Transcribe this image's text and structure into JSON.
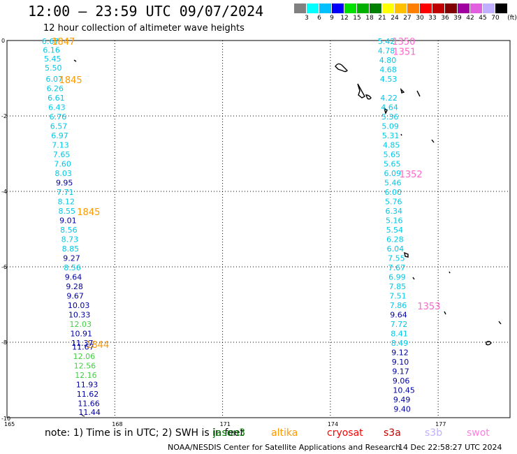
{
  "header": {
    "title": "12:00 – 23:59 UTC 09/07/2024",
    "subtitle": "12 hour collection of altimeter wave heights"
  },
  "legend": {
    "unit": "(ft)",
    "bins": [
      {
        "color": "#808080",
        "label": "3"
      },
      {
        "color": "#00ffff",
        "label": "6"
      },
      {
        "color": "#00c0ff",
        "label": "9"
      },
      {
        "color": "#0000ff",
        "label": "12"
      },
      {
        "color": "#00e000",
        "label": "15"
      },
      {
        "color": "#00b000",
        "label": "18"
      },
      {
        "color": "#008000",
        "label": "21"
      },
      {
        "color": "#ffff00",
        "label": "24"
      },
      {
        "color": "#ffc000",
        "label": "27"
      },
      {
        "color": "#ff8000",
        "label": "30"
      },
      {
        "color": "#ff0000",
        "label": "33"
      },
      {
        "color": "#c00000",
        "label": "36"
      },
      {
        "color": "#800000",
        "label": "39"
      },
      {
        "color": "#a000a0",
        "label": "42"
      },
      {
        "color": "#e060e0",
        "label": "45"
      },
      {
        "color": "#c0b0ff",
        "label": "70"
      },
      {
        "color": "#000000",
        "label": ""
      }
    ]
  },
  "axes": {
    "lat_ticks": [
      "0",
      "-2",
      "-4",
      "-6",
      "-8",
      "-10"
    ],
    "lon_ticks": [
      "165",
      "168",
      "171",
      "174",
      "177"
    ],
    "lat_range": [
      -10,
      0
    ],
    "lon_range": [
      165,
      179
    ]
  },
  "colors": {
    "cyan": "#00c8e8",
    "navy": "#0000a0",
    "green": "#40d040",
    "orange": "#ff9900",
    "pink": "#ff66cc"
  },
  "track1": {
    "tracks": [
      {
        "lon": 165.97,
        "lat": -0.02,
        "v": "6.67",
        "c": "cyan"
      },
      {
        "lon": 166.0,
        "lat": -0.25,
        "v": "6.16",
        "c": "cyan"
      },
      {
        "lon": 166.03,
        "lat": -0.48,
        "v": "5.45",
        "c": "cyan"
      },
      {
        "lon": 166.05,
        "lat": -0.72,
        "v": "5.50",
        "c": "cyan"
      },
      {
        "lon": 166.08,
        "lat": -1.02,
        "v": "6.07",
        "c": "cyan"
      },
      {
        "lon": 166.1,
        "lat": -1.27,
        "v": "6.26",
        "c": "cyan"
      },
      {
        "lon": 166.13,
        "lat": -1.52,
        "v": "6.61",
        "c": "cyan"
      },
      {
        "lon": 166.15,
        "lat": -1.77,
        "v": "6.43",
        "c": "cyan"
      },
      {
        "lon": 166.18,
        "lat": -2.02,
        "v": "6.76",
        "c": "cyan"
      },
      {
        "lon": 166.2,
        "lat": -2.27,
        "v": "6.57",
        "c": "cyan"
      },
      {
        "lon": 166.23,
        "lat": -2.52,
        "v": "6.97",
        "c": "cyan"
      },
      {
        "lon": 166.25,
        "lat": -2.77,
        "v": "7.13",
        "c": "cyan"
      },
      {
        "lon": 166.28,
        "lat": -3.02,
        "v": "7.65",
        "c": "cyan"
      },
      {
        "lon": 166.31,
        "lat": -3.27,
        "v": "7.60",
        "c": "cyan"
      },
      {
        "lon": 166.33,
        "lat": -3.52,
        "v": "8.03",
        "c": "cyan"
      },
      {
        "lon": 166.36,
        "lat": -3.77,
        "v": "9.95",
        "c": "navy"
      },
      {
        "lon": 166.38,
        "lat": -4.02,
        "v": "7.71",
        "c": "cyan"
      },
      {
        "lon": 166.41,
        "lat": -4.27,
        "v": "8.12",
        "c": "cyan"
      },
      {
        "lon": 166.43,
        "lat": -4.52,
        "v": "8.55",
        "c": "cyan"
      },
      {
        "lon": 166.46,
        "lat": -4.77,
        "v": "9.01",
        "c": "navy"
      },
      {
        "lon": 166.48,
        "lat": -5.02,
        "v": "8.56",
        "c": "cyan"
      },
      {
        "lon": 166.51,
        "lat": -5.27,
        "v": "8.73",
        "c": "cyan"
      },
      {
        "lon": 166.53,
        "lat": -5.52,
        "v": "8.85",
        "c": "cyan"
      },
      {
        "lon": 166.56,
        "lat": -5.77,
        "v": "9.27",
        "c": "navy"
      },
      {
        "lon": 166.58,
        "lat": -6.02,
        "v": "8.56",
        "c": "cyan"
      },
      {
        "lon": 166.61,
        "lat": -6.27,
        "v": "9.64",
        "c": "navy"
      },
      {
        "lon": 166.64,
        "lat": -6.52,
        "v": "9.28",
        "c": "navy"
      },
      {
        "lon": 166.66,
        "lat": -6.77,
        "v": "9.67",
        "c": "navy"
      },
      {
        "lon": 166.69,
        "lat": -7.02,
        "v": "10.03",
        "c": "navy"
      },
      {
        "lon": 166.71,
        "lat": -7.27,
        "v": "10.33",
        "c": "navy"
      },
      {
        "lon": 166.74,
        "lat": -7.52,
        "v": "12.03",
        "c": "green"
      },
      {
        "lon": 166.76,
        "lat": -7.77,
        "v": "10.91",
        "c": "navy"
      },
      {
        "lon": 166.79,
        "lat": -8.02,
        "v": "11.37",
        "c": "navy"
      },
      {
        "lon": 166.81,
        "lat": -8.12,
        "v": "11.67",
        "c": "navy"
      },
      {
        "lon": 166.84,
        "lat": -8.37,
        "v": "12.06",
        "c": "green"
      },
      {
        "lon": 166.86,
        "lat": -8.62,
        "v": "12.56",
        "c": "green"
      },
      {
        "lon": 166.89,
        "lat": -8.87,
        "v": "12.16",
        "c": "green"
      },
      {
        "lon": 166.92,
        "lat": -9.12,
        "v": "11.93",
        "c": "navy"
      },
      {
        "lon": 166.94,
        "lat": -9.37,
        "v": "11.62",
        "c": "navy"
      },
      {
        "lon": 166.97,
        "lat": -9.62,
        "v": "11.66",
        "c": "navy"
      },
      {
        "lon": 166.99,
        "lat": -9.85,
        "v": "11.44",
        "c": "navy"
      }
    ],
    "time_labels": [
      {
        "lon": 166.25,
        "lat": -0.02,
        "v": "1847"
      },
      {
        "lon": 166.45,
        "lat": -1.04,
        "v": "1845"
      },
      {
        "lon": 166.95,
        "lat": -4.54,
        "v": "1845"
      },
      {
        "lon": 167.2,
        "lat": -8.06,
        "v": "1844"
      }
    ]
  },
  "track2": {
    "tracks": [
      {
        "lon": 175.32,
        "lat": -0.02,
        "v": "5.42",
        "c": "cyan"
      },
      {
        "lon": 175.32,
        "lat": -0.27,
        "v": "4.78",
        "c": "cyan"
      },
      {
        "lon": 175.36,
        "lat": -0.52,
        "v": "4.80",
        "c": "cyan"
      },
      {
        "lon": 175.37,
        "lat": -0.77,
        "v": "4.68",
        "c": "cyan"
      },
      {
        "lon": 175.38,
        "lat": -1.02,
        "v": "4.53",
        "c": "cyan"
      },
      {
        "lon": 175.39,
        "lat": -1.52,
        "v": "4.22",
        "c": "cyan"
      },
      {
        "lon": 175.41,
        "lat": -1.77,
        "v": "4.64",
        "c": "cyan"
      },
      {
        "lon": 175.42,
        "lat": -2.02,
        "v": "5.36",
        "c": "cyan"
      },
      {
        "lon": 175.43,
        "lat": -2.27,
        "v": "5.09",
        "c": "cyan"
      },
      {
        "lon": 175.44,
        "lat": -2.52,
        "v": "5.31",
        "c": "cyan"
      },
      {
        "lon": 175.46,
        "lat": -2.77,
        "v": "4.85",
        "c": "cyan"
      },
      {
        "lon": 175.47,
        "lat": -3.02,
        "v": "5.65",
        "c": "cyan"
      },
      {
        "lon": 175.48,
        "lat": -3.27,
        "v": "5.65",
        "c": "cyan"
      },
      {
        "lon": 175.49,
        "lat": -3.52,
        "v": "6.09",
        "c": "cyan"
      },
      {
        "lon": 175.5,
        "lat": -3.77,
        "v": "5.46",
        "c": "cyan"
      },
      {
        "lon": 175.51,
        "lat": -4.02,
        "v": "6.00",
        "c": "cyan"
      },
      {
        "lon": 175.52,
        "lat": -4.27,
        "v": "5.76",
        "c": "cyan"
      },
      {
        "lon": 175.53,
        "lat": -4.52,
        "v": "6.34",
        "c": "cyan"
      },
      {
        "lon": 175.54,
        "lat": -4.77,
        "v": "5.16",
        "c": "cyan"
      },
      {
        "lon": 175.55,
        "lat": -5.02,
        "v": "5.54",
        "c": "cyan"
      },
      {
        "lon": 175.56,
        "lat": -5.27,
        "v": "6.28",
        "c": "cyan"
      },
      {
        "lon": 175.57,
        "lat": -5.52,
        "v": "6.04",
        "c": "cyan"
      },
      {
        "lon": 175.6,
        "lat": -5.77,
        "v": "7.55",
        "c": "cyan"
      },
      {
        "lon": 175.61,
        "lat": -6.02,
        "v": "7.67",
        "c": "cyan"
      },
      {
        "lon": 175.62,
        "lat": -6.27,
        "v": "6.99",
        "c": "cyan"
      },
      {
        "lon": 175.63,
        "lat": -6.52,
        "v": "7.85",
        "c": "cyan"
      },
      {
        "lon": 175.64,
        "lat": -6.77,
        "v": "7.51",
        "c": "cyan"
      },
      {
        "lon": 175.65,
        "lat": -7.02,
        "v": "7.86",
        "c": "cyan"
      },
      {
        "lon": 175.66,
        "lat": -7.27,
        "v": "9.64",
        "c": "navy"
      },
      {
        "lon": 175.67,
        "lat": -7.52,
        "v": "7.72",
        "c": "cyan"
      },
      {
        "lon": 175.68,
        "lat": -7.77,
        "v": "8.41",
        "c": "cyan"
      },
      {
        "lon": 175.69,
        "lat": -8.02,
        "v": "8.49",
        "c": "cyan"
      },
      {
        "lon": 175.7,
        "lat": -8.27,
        "v": "9.12",
        "c": "navy"
      },
      {
        "lon": 175.71,
        "lat": -8.52,
        "v": "9.10",
        "c": "navy"
      },
      {
        "lon": 175.72,
        "lat": -8.77,
        "v": "9.17",
        "c": "navy"
      },
      {
        "lon": 175.73,
        "lat": -9.02,
        "v": "9.06",
        "c": "navy"
      },
      {
        "lon": 175.74,
        "lat": -9.27,
        "v": "10.45",
        "c": "navy"
      },
      {
        "lon": 175.75,
        "lat": -9.52,
        "v": "9.49",
        "c": "navy"
      },
      {
        "lon": 175.76,
        "lat": -9.77,
        "v": "9.40",
        "c": "navy"
      }
    ],
    "time_labels": [
      {
        "lon": 175.72,
        "lat": -0.02,
        "v": "1350"
      },
      {
        "lon": 175.74,
        "lat": -0.29,
        "v": "1351"
      },
      {
        "lon": 175.92,
        "lat": -3.54,
        "v": "1352"
      },
      {
        "lon": 176.42,
        "lat": -7.04,
        "v": "1353"
      }
    ]
  },
  "footer": {
    "note": "note:  1) Time is in UTC;  2) SWH is in feet",
    "satellites": [
      {
        "name": "jason3",
        "color": "#008000"
      },
      {
        "name": "altika",
        "color": "#ff9900"
      },
      {
        "name": "cryosat",
        "color": "#ff0000"
      },
      {
        "name": "s3a",
        "color": "#c00000"
      },
      {
        "name": "s3b",
        "color": "#c0b0ff"
      },
      {
        "name": "swot",
        "color": "#ff80e0"
      }
    ],
    "credit": "NOAA/NESDIS Center for Satellite Applications and Research",
    "timestamp": "14 Dec 22:58:27 UTC 2024"
  }
}
